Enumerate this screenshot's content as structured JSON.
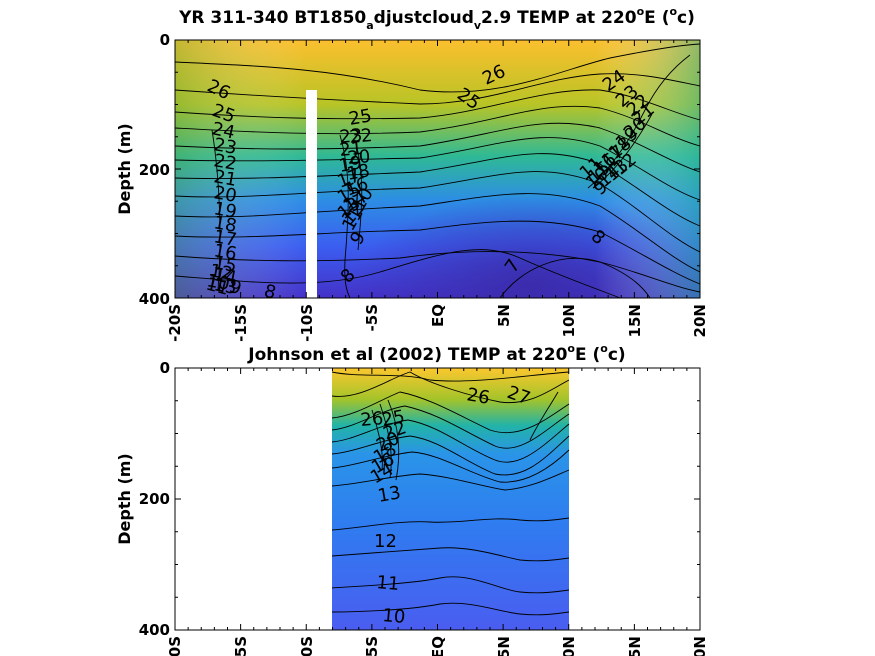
{
  "chart_data": [
    {
      "type": "heatmap",
      "title": {
        "prefix": "YR 311-340 BT1850",
        "sub1": "a",
        "mid": "djustcloud",
        "sub2": "v",
        "suffix1": "2.9 TEMP at 220",
        "sup1": "o",
        "suffix2": "E (",
        "sup2": "o",
        "suffix3": "c)"
      },
      "ylabel": "Depth (m)",
      "ylim": [
        400,
        0
      ],
      "xlim": [
        -20,
        20
      ],
      "yticks": [
        "0",
        "200",
        "400"
      ],
      "xticks": [
        "-20S",
        "-15S",
        "-10S",
        "-5S",
        "EQ",
        "5N",
        "10N",
        "15N",
        "20N"
      ],
      "data_gap": {
        "x": -10,
        "depth": [
          80,
          400
        ]
      },
      "contour_labels": [
        "26",
        "25",
        "24",
        "23",
        "22",
        "21",
        "20",
        "19",
        "18",
        "17",
        "16",
        "15",
        "14",
        "13",
        "12",
        "11",
        "10",
        "9",
        "8",
        "7",
        "25",
        "23",
        "22",
        "21",
        "20",
        "19",
        "18",
        "17",
        "16",
        "15",
        "14",
        "13",
        "12",
        "11",
        "10",
        "9",
        "8",
        "26",
        "25",
        "24",
        "23",
        "22",
        "21",
        "20",
        "19",
        "18",
        "17",
        "16",
        "15",
        "14",
        "13",
        "12",
        "11",
        "10",
        "9",
        "8"
      ]
    },
    {
      "type": "heatmap",
      "title": {
        "prefix": "Johnson et al (2002) TEMP at 220",
        "sup1": "o",
        "suffix2": "E (",
        "sup2": "o",
        "suffix3": "c)"
      },
      "ylabel": "Depth (m)",
      "ylim": [
        400,
        0
      ],
      "xlim": [
        -20,
        20
      ],
      "data_xrange": [
        -8,
        10
      ],
      "yticks": [
        "0",
        "200",
        "400"
      ],
      "xticks": [
        "-20S",
        "-15S",
        "-10S",
        "-5S",
        "EQ",
        "5N",
        "10N",
        "15N",
        "20N"
      ],
      "contour_labels": [
        "27",
        "26",
        "26",
        "25",
        "22",
        "20",
        "18",
        "16",
        "14",
        "13",
        "12",
        "11",
        "10"
      ]
    }
  ]
}
